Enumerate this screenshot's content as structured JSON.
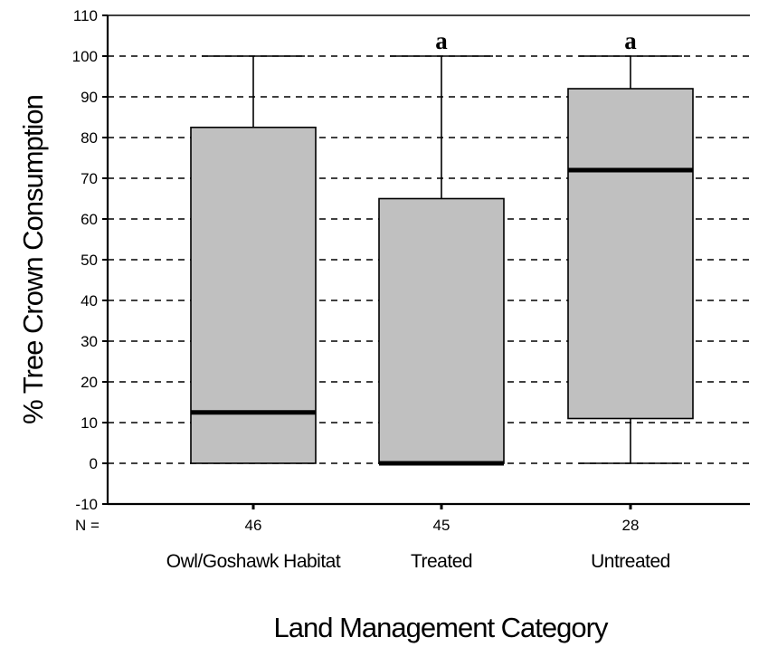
{
  "chart_data": {
    "type": "boxplot",
    "ylabel": "% Tree Crown Consumption",
    "xlabel": "Land Management Category",
    "ylim": [
      -10,
      110
    ],
    "yticks": [
      -10,
      0,
      10,
      20,
      30,
      40,
      50,
      60,
      70,
      80,
      90,
      100,
      110
    ],
    "ytick_labels": [
      "-10",
      "0",
      "10",
      "20",
      "30",
      "40",
      "50",
      "60",
      "70",
      "80",
      "90",
      "100",
      "110"
    ],
    "grid": "horizontal-dashed",
    "n_prefix": "N =",
    "categories": [
      "Owl/Goshawk Habitat",
      "Treated",
      "Untreated"
    ],
    "boxes": [
      {
        "category": "Owl/Goshawk Habitat",
        "n": "46",
        "min": 0,
        "q1": 0,
        "median": 12.5,
        "q3": 82.5,
        "max": 100,
        "sig": ""
      },
      {
        "category": "Treated",
        "n": "45",
        "min": 0,
        "q1": 0,
        "median": 0,
        "q3": 65,
        "max": 100,
        "sig": "a"
      },
      {
        "category": "Untreated",
        "n": "28",
        "min": 0,
        "q1": 11,
        "median": 72,
        "q3": 92,
        "max": 100,
        "sig": "a"
      }
    ],
    "colors": {
      "box_fill": "#c0c0c0",
      "stroke": "#000000"
    }
  }
}
